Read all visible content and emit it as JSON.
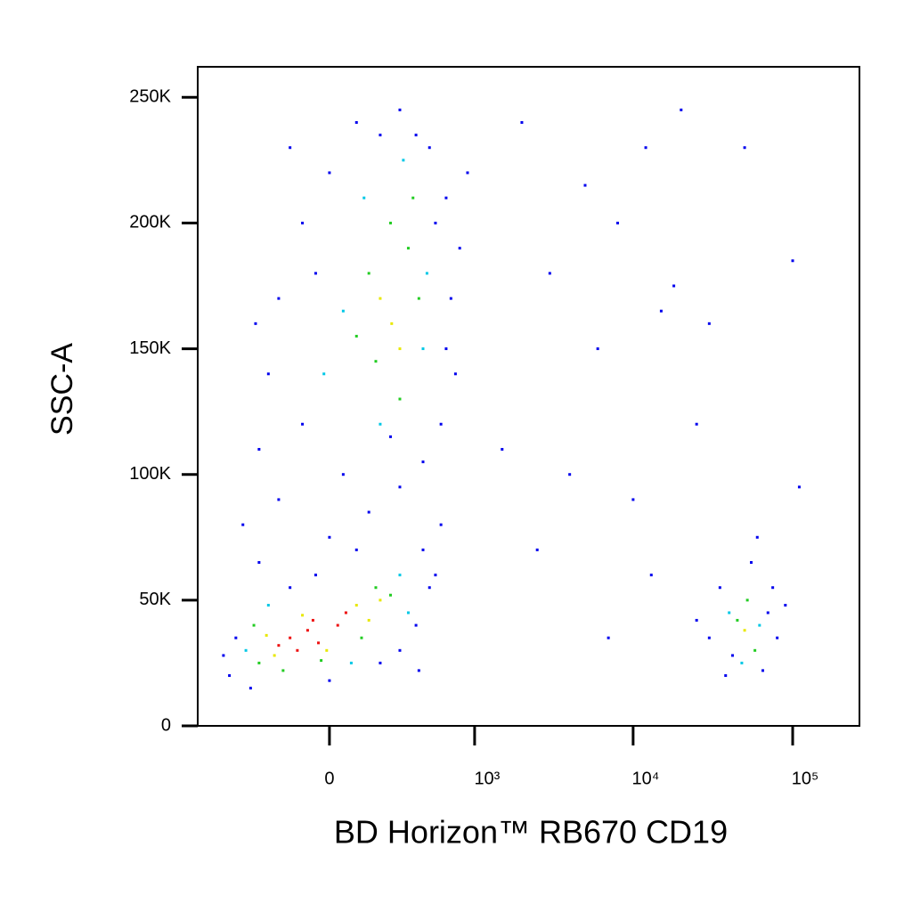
{
  "chart_data": {
    "type": "scatter",
    "x_label": "BD Horizon™ RB670  CD19",
    "y_label": "SSC-A",
    "xscale": "biexponential",
    "xlim": [
      -818,
      262144
    ],
    "ylim": [
      0,
      262144
    ],
    "xticks": [
      0,
      {
        "value": 1000,
        "label": "10³"
      },
      {
        "value": 10000,
        "label": "10⁴"
      },
      {
        "value": 100000,
        "label": "10⁵"
      }
    ],
    "yticks": [
      0,
      {
        "value": 50000,
        "label": "50K"
      },
      {
        "value": 100000,
        "label": "100K"
      },
      {
        "value": 150000,
        "label": "150K"
      },
      {
        "value": 200000,
        "label": "200K"
      },
      {
        "value": 250000,
        "label": "250K"
      }
    ],
    "series": [
      {
        "color": "#0000ee",
        "x": [
          -500,
          -450,
          -350,
          400,
          500,
          450,
          -150,
          -50,
          300,
          -550,
          200,
          550,
          100,
          600,
          -300,
          0,
          420,
          -200,
          50,
          -300,
          150,
          -100,
          300,
          -400,
          250,
          0,
          450,
          -200,
          -100,
          0,
          100,
          300,
          500,
          650,
          700,
          750,
          600,
          -250,
          -50,
          400,
          800,
          550,
          -150,
          200,
          650,
          900,
          -320,
          30000,
          35000,
          70000,
          80000,
          55000,
          25000,
          65000,
          42000,
          75000,
          60000,
          38000,
          90000,
          2000,
          5000,
          12000,
          20000,
          8000,
          3000,
          15000,
          6000,
          25000,
          4000,
          10000,
          2500,
          7000,
          18000,
          30000,
          50000,
          1500,
          13000,
          100000,
          110000
        ],
        "y": [
          20000,
          35000,
          15000,
          40000,
          55000,
          70000,
          55000,
          60000,
          30000,
          28000,
          25000,
          60000,
          70000,
          80000,
          65000,
          18000,
          22000,
          90000,
          100000,
          110000,
          85000,
          120000,
          95000,
          80000,
          115000,
          75000,
          105000,
          170000,
          200000,
          220000,
          240000,
          245000,
          230000,
          210000,
          170000,
          140000,
          120000,
          140000,
          180000,
          235000,
          190000,
          200000,
          230000,
          235000,
          150000,
          220000,
          160000,
          35000,
          55000,
          45000,
          35000,
          65000,
          42000,
          22000,
          28000,
          55000,
          75000,
          20000,
          48000,
          240000,
          215000,
          230000,
          245000,
          200000,
          180000,
          165000,
          150000,
          120000,
          100000,
          90000,
          70000,
          35000,
          175000,
          160000,
          230000,
          110000,
          60000,
          185000,
          95000
        ]
      },
      {
        "color": "#00c8e6",
        "x": [
          -380,
          300,
          -250,
          80,
          350,
          50,
          480,
          200,
          320,
          130,
          450,
          -20,
          40000,
          62000,
          48000
        ],
        "y": [
          30000,
          60000,
          48000,
          25000,
          45000,
          165000,
          180000,
          120000,
          225000,
          210000,
          150000,
          140000,
          45000,
          40000,
          25000
        ]
      },
      {
        "color": "#22cc22",
        "x": [
          -300,
          180,
          -180,
          250,
          -30,
          120,
          -330,
          150,
          350,
          180,
          420,
          250,
          100,
          300,
          380,
          45000,
          58000,
          52000
        ],
        "y": [
          25000,
          55000,
          22000,
          52000,
          26000,
          35000,
          40000,
          180000,
          190000,
          145000,
          170000,
          200000,
          155000,
          130000,
          210000,
          42000,
          30000,
          50000
        ]
      },
      {
        "color": "#e8e800",
        "x": [
          -220,
          100,
          -10,
          -100,
          150,
          -260,
          200,
          256,
          200,
          300,
          50000
        ],
        "y": [
          28000,
          48000,
          30000,
          44000,
          42000,
          36000,
          50000,
          160000,
          170000,
          150000,
          38000
        ]
      },
      {
        "color": "#ee1111",
        "x": [
          -150,
          -80,
          -40,
          -120,
          30,
          -60,
          -200,
          60
        ],
        "y": [
          35000,
          38000,
          33000,
          30000,
          40000,
          42000,
          32000,
          45000
        ]
      }
    ]
  }
}
